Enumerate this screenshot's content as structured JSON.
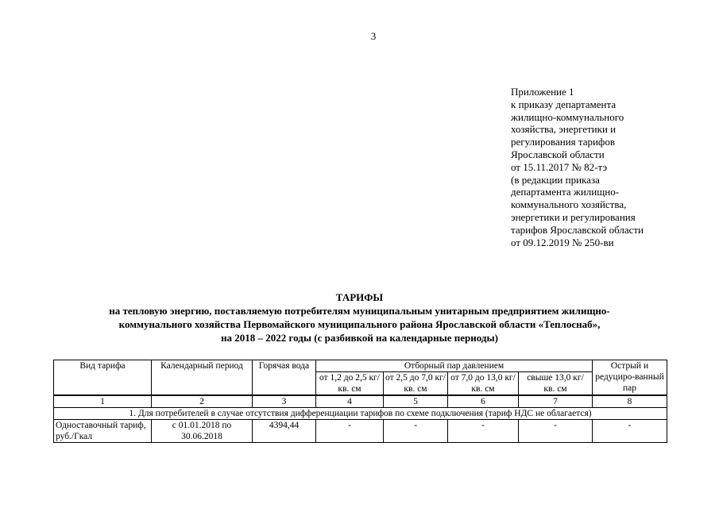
{
  "page_number": "3",
  "appendix": [
    "Приложение 1",
    "к приказу департамента",
    "жилищно-коммунального",
    "хозяйства, энергетики и",
    "регулирования тарифов",
    "Ярославской области",
    "от 15.11.2017  № 82-тэ",
    "(в редакции приказа",
    "департамента жилищно-",
    "коммунального хозяйства,",
    "энергетики и регулирования",
    "тарифов Ярославской области",
    "от 09.12.2019  № 250-ви"
  ],
  "title": [
    "ТАРИФЫ",
    "на тепловую энергию, поставляемую потребителям муниципальным унитарным предприятием жилищно-",
    "коммунального хозяйства Первомайского муниципального района Ярославской области «Теплоснаб»,",
    "на 2018 – 2022 годы (с разбивкой на календарные периоды)"
  ],
  "table": {
    "headers": {
      "c1": "Вид тарифа",
      "c2": "Календарный период",
      "c3": "Горячая вода",
      "steam": "Отборный пар давлением",
      "s1": "от 1,2 до 2,5 кг/ кв. см",
      "s2": "от 2,5 до 7,0 кг/ кв. см",
      "s3": "от 7,0 до 13,0 кг/ кв. см",
      "s4": "свыше 13,0 кг/ кв. см",
      "c8": "Острый и редуциро-ванный пар"
    },
    "numbers": [
      "1",
      "2",
      "3",
      "4",
      "5",
      "6",
      "7",
      "8"
    ],
    "section": "1.   Для потребителей в случае отсутствия дифференциации тарифов по схеме подключения (тариф НДС не облагается)",
    "rows": [
      {
        "type": "Одноставочный тариф, руб./Гкал",
        "period": "с 01.01.2018 по 30.06.2018",
        "values": [
          "4394,44",
          "-",
          "-",
          "-",
          "-",
          "-"
        ]
      }
    ]
  }
}
